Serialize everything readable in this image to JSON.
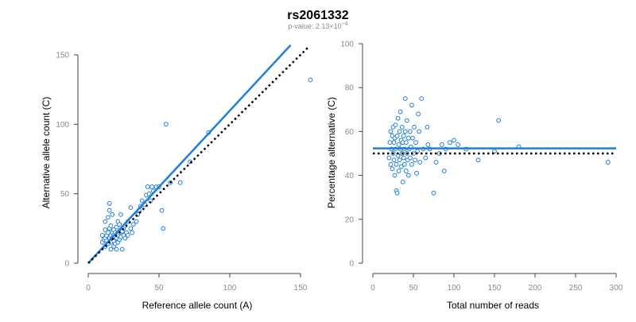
{
  "title": "rs2061332",
  "subtitle": {
    "prefix": "p-value: 2.13×10",
    "exponent": "−4"
  },
  "colors": {
    "primary": "#1f7fdc",
    "point_stroke": "#1f7fdc",
    "reference_line": "#000000",
    "axis": "#444444",
    "tick_text": "#8a8a8a"
  },
  "chart_data": [
    {
      "type": "scatter",
      "xlabel": "Reference allele count (A)",
      "ylabel": "Alternative allele count (C)",
      "xlim": [
        0,
        160
      ],
      "ylim": [
        0,
        150
      ],
      "xticks": [
        0,
        50,
        100,
        150
      ],
      "yticks": [
        0,
        50,
        100,
        150
      ],
      "grid": false,
      "lines": [
        {
          "style": "solid",
          "x": [
            0,
            143
          ],
          "y": [
            0,
            157
          ]
        },
        {
          "style": "dotted",
          "x": [
            0,
            156
          ],
          "y": [
            0,
            156
          ]
        }
      ],
      "points": [
        [
          10,
          15
        ],
        [
          10,
          20
        ],
        [
          11,
          17
        ],
        [
          12,
          12
        ],
        [
          12,
          18
        ],
        [
          12,
          24
        ],
        [
          12,
          30
        ],
        [
          13,
          16
        ],
        [
          13,
          20
        ],
        [
          14,
          14
        ],
        [
          14,
          22
        ],
        [
          14,
          33
        ],
        [
          15,
          18
        ],
        [
          15,
          25
        ],
        [
          15,
          38
        ],
        [
          15,
          43
        ],
        [
          16,
          10
        ],
        [
          16,
          15
        ],
        [
          16,
          20
        ],
        [
          16,
          27
        ],
        [
          17,
          18
        ],
        [
          17,
          22
        ],
        [
          17,
          35
        ],
        [
          18,
          12
        ],
        [
          18,
          16
        ],
        [
          18,
          20
        ],
        [
          18,
          24
        ],
        [
          19,
          14
        ],
        [
          19,
          19
        ],
        [
          19,
          22
        ],
        [
          20,
          10
        ],
        [
          20,
          18
        ],
        [
          20,
          26
        ],
        [
          21,
          15
        ],
        [
          21,
          20
        ],
        [
          21,
          30
        ],
        [
          22,
          17
        ],
        [
          22,
          22
        ],
        [
          22,
          28
        ],
        [
          23,
          19
        ],
        [
          23,
          35
        ],
        [
          24,
          10
        ],
        [
          24,
          23
        ],
        [
          25,
          20
        ],
        [
          25,
          25
        ],
        [
          26,
          18
        ],
        [
          26,
          27
        ],
        [
          27,
          22
        ],
        [
          28,
          20
        ],
        [
          28,
          30
        ],
        [
          30,
          25
        ],
        [
          30,
          40
        ],
        [
          31,
          22
        ],
        [
          32,
          28
        ],
        [
          34,
          30
        ],
        [
          35,
          35
        ],
        [
          36,
          38
        ],
        [
          37,
          41
        ],
        [
          38,
          45
        ],
        [
          40,
          42
        ],
        [
          41,
          49
        ],
        [
          42,
          55
        ],
        [
          43,
          50
        ],
        [
          44,
          45
        ],
        [
          45,
          55
        ],
        [
          46,
          52
        ],
        [
          48,
          55
        ],
        [
          50,
          55
        ],
        [
          52,
          38
        ],
        [
          53,
          25
        ],
        [
          55,
          100
        ],
        [
          58,
          58
        ],
        [
          65,
          58
        ],
        [
          72,
          73
        ],
        [
          85,
          94
        ],
        [
          157,
          132
        ]
      ]
    },
    {
      "type": "scatter",
      "xlabel": "Total number of reads",
      "ylabel": "Percentage alternative (C)",
      "xlim": [
        0,
        300
      ],
      "ylim": [
        0,
        100
      ],
      "xticks": [
        0,
        50,
        100,
        150,
        200,
        250,
        300
      ],
      "yticks": [
        0,
        20,
        40,
        60,
        80,
        100
      ],
      "grid": false,
      "lines": [
        {
          "style": "solid",
          "x": [
            0,
            300
          ],
          "y": [
            52.3,
            52.3
          ]
        },
        {
          "style": "dotted",
          "x": [
            0,
            300
          ],
          "y": [
            50,
            50
          ]
        }
      ],
      "points": [
        [
          20,
          48
        ],
        [
          21,
          55
        ],
        [
          22,
          60
        ],
        [
          22,
          45
        ],
        [
          23,
          52
        ],
        [
          24,
          58
        ],
        [
          24,
          43
        ],
        [
          25,
          50
        ],
        [
          25,
          62
        ],
        [
          26,
          47
        ],
        [
          26,
          55
        ],
        [
          27,
          40
        ],
        [
          27,
          57
        ],
        [
          28,
          52
        ],
        [
          28,
          63
        ],
        [
          29,
          45
        ],
        [
          29,
          33
        ],
        [
          30,
          58
        ],
        [
          30,
          32
        ],
        [
          31,
          49
        ],
        [
          31,
          66
        ],
        [
          32,
          54
        ],
        [
          32,
          42
        ],
        [
          33,
          60
        ],
        [
          33,
          47
        ],
        [
          34,
          52
        ],
        [
          34,
          69
        ],
        [
          35,
          56
        ],
        [
          35,
          44
        ],
        [
          36,
          50
        ],
        [
          36,
          62
        ],
        [
          37,
          37
        ],
        [
          37,
          55
        ],
        [
          38,
          48
        ],
        [
          38,
          58
        ],
        [
          39,
          45
        ],
        [
          39,
          52
        ],
        [
          40,
          75
        ],
        [
          40,
          60
        ],
        [
          41,
          42
        ],
        [
          41,
          55
        ],
        [
          42,
          50
        ],
        [
          42,
          65
        ],
        [
          43,
          47
        ],
        [
          44,
          57
        ],
        [
          44,
          40
        ],
        [
          45,
          52
        ],
        [
          46,
          60
        ],
        [
          46,
          48
        ],
        [
          47,
          53
        ],
        [
          48,
          72
        ],
        [
          48,
          45
        ],
        [
          49,
          57
        ],
        [
          50,
          50
        ],
        [
          51,
          62
        ],
        [
          52,
          47
        ],
        [
          53,
          55
        ],
        [
          54,
          41
        ],
        [
          55,
          51
        ],
        [
          56,
          68
        ],
        [
          57,
          60
        ],
        [
          58,
          46
        ],
        [
          60,
          75
        ],
        [
          62,
          52
        ],
        [
          65,
          48
        ],
        [
          67,
          62
        ],
        [
          68,
          54
        ],
        [
          70,
          52
        ],
        [
          75,
          32
        ],
        [
          78,
          46
        ],
        [
          82,
          50
        ],
        [
          85,
          54
        ],
        [
          88,
          42
        ],
        [
          90,
          52
        ],
        [
          95,
          55
        ],
        [
          100,
          56
        ],
        [
          105,
          54
        ],
        [
          115,
          52
        ],
        [
          130,
          47
        ],
        [
          150,
          51
        ],
        [
          155,
          65
        ],
        [
          180,
          53
        ],
        [
          290,
          46
        ]
      ]
    }
  ]
}
